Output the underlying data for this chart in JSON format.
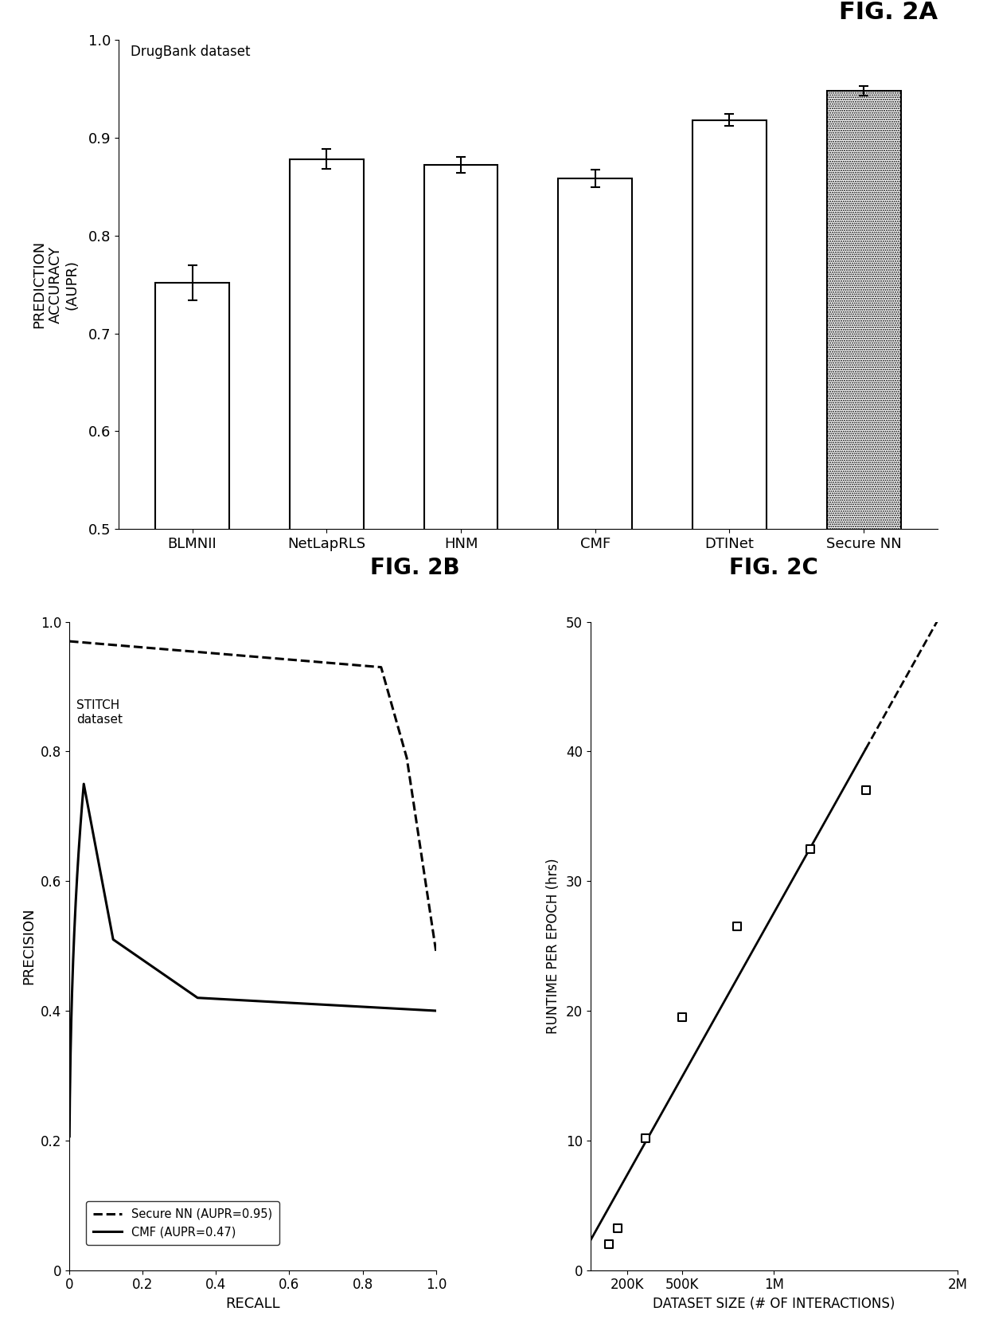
{
  "fig2a": {
    "title": "FIG. 2A",
    "dataset_label": "DrugBank dataset",
    "categories": [
      "BLMNII",
      "NetLapRLS",
      "HNM",
      "CMF",
      "DTINet",
      "Secure NN"
    ],
    "values": [
      0.752,
      0.878,
      0.872,
      0.858,
      0.918,
      0.948
    ],
    "errors": [
      0.018,
      0.01,
      0.008,
      0.009,
      0.006,
      0.005
    ],
    "ylabel": "PREDICTION\nACCURACY\n(AUPR)",
    "ylim": [
      0.5,
      1.0
    ],
    "yticks": [
      0.5,
      0.6,
      0.7,
      0.8,
      0.9,
      1.0
    ]
  },
  "fig2b": {
    "title": "FIG. 2B",
    "dataset_label": "STITCH\ndataset",
    "xlabel": "RECALL",
    "ylabel": "PRECISION",
    "xlim": [
      0,
      1.0
    ],
    "ylim": [
      0,
      1.0
    ],
    "xticks": [
      0,
      0.2,
      0.4,
      0.6,
      0.8,
      1.0
    ],
    "yticks": [
      0,
      0.2,
      0.4,
      0.6,
      0.8,
      1.0
    ],
    "legend_label_nn": "Secure NN (AUPR=0.95)",
    "legend_label_cmf": "CMF (AUPR=0.47)"
  },
  "fig2c": {
    "title": "FIG. 2C",
    "xlabel": "DATASET SIZE (# OF INTERACTIONS)",
    "ylabel": "RUNTIME PER EPOCH (hrs)",
    "scatter_x": [
      100000,
      150000,
      300000,
      500000,
      800000,
      1200000,
      1500000
    ],
    "scatter_y": [
      2.0,
      3.2,
      10.2,
      19.5,
      26.5,
      32.5,
      37.0
    ],
    "xlim": [
      0,
      2000000
    ],
    "ylim": [
      0,
      50
    ],
    "yticks": [
      0,
      10,
      20,
      30,
      40,
      50
    ],
    "xtick_labels": [
      "200K",
      "500K",
      "1M",
      "2M"
    ],
    "xtick_vals": [
      200000,
      500000,
      1000000,
      2000000
    ]
  },
  "background_color": "#ffffff",
  "text_color": "#000000"
}
